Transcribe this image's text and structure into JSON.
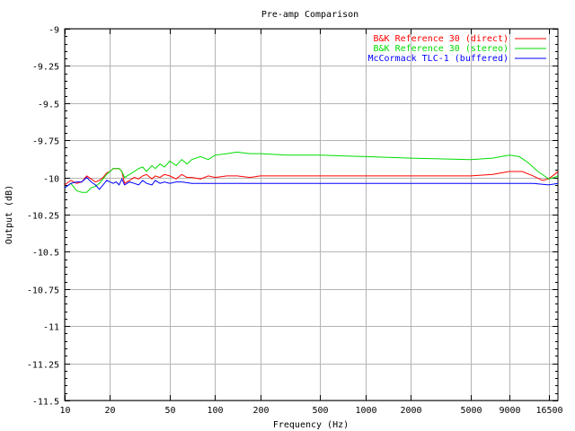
{
  "chart_data": {
    "type": "line",
    "title": "Pre-amp Comparison",
    "xlabel": "Frequency (Hz)",
    "ylabel": "Output (dB)",
    "x_scale": "log",
    "xlim": [
      10,
      19000
    ],
    "ylim": [
      -11.5,
      -9
    ],
    "grid": true,
    "legend_position": "top-right",
    "x_ticks": [
      10,
      20,
      50,
      100,
      200,
      500,
      1000,
      2000,
      5000,
      9000,
      16500
    ],
    "x_tick_labels": [
      "10",
      "20",
      "50",
      "100",
      "200",
      "500",
      "1000",
      "2000",
      "5000",
      "9000",
      "16500"
    ],
    "y_ticks": [
      -9,
      -9.25,
      -9.5,
      -9.75,
      -10,
      -10.25,
      -10.5,
      -10.75,
      -11,
      -11.25,
      -11.5
    ],
    "y_tick_labels": [
      "-9",
      "-9.25",
      "-9.5",
      "-9.75",
      "-10",
      "-10.25",
      "-10.5",
      "-10.75",
      "-11",
      "-11.25",
      "-11.5"
    ],
    "series": [
      {
        "name": "B&K Reference 30 (direct)",
        "color": "#ff0000",
        "points": [
          [
            10,
            -10.05
          ],
          [
            11,
            -10.02
          ],
          [
            12,
            -10.04
          ],
          [
            13,
            -10.03
          ],
          [
            14,
            -9.99
          ],
          [
            15,
            -10.01
          ],
          [
            16,
            -10.03
          ],
          [
            17,
            -10.02
          ],
          [
            18,
            -10.0
          ],
          [
            19,
            -9.97
          ],
          [
            20,
            -9.96
          ],
          [
            21,
            -9.94
          ],
          [
            22,
            -9.94
          ],
          [
            23,
            -9.94
          ],
          [
            24,
            -9.96
          ],
          [
            25,
            -10.04
          ],
          [
            27,
            -10.02
          ],
          [
            29,
            -10.0
          ],
          [
            31,
            -10.01
          ],
          [
            33,
            -9.99
          ],
          [
            35,
            -9.98
          ],
          [
            38,
            -10.01
          ],
          [
            40,
            -9.99
          ],
          [
            43,
            -10.0
          ],
          [
            46,
            -9.98
          ],
          [
            50,
            -9.99
          ],
          [
            55,
            -10.01
          ],
          [
            60,
            -9.98
          ],
          [
            65,
            -10.0
          ],
          [
            70,
            -10.0
          ],
          [
            80,
            -10.01
          ],
          [
            90,
            -9.99
          ],
          [
            100,
            -10.0
          ],
          [
            120,
            -9.99
          ],
          [
            140,
            -9.99
          ],
          [
            170,
            -10.0
          ],
          [
            200,
            -9.99
          ],
          [
            300,
            -9.99
          ],
          [
            500,
            -9.99
          ],
          [
            1000,
            -9.99
          ],
          [
            2000,
            -9.99
          ],
          [
            5000,
            -9.99
          ],
          [
            7000,
            -9.98
          ],
          [
            9000,
            -9.96
          ],
          [
            11000,
            -9.96
          ],
          [
            13000,
            -9.99
          ],
          [
            15000,
            -10.02
          ],
          [
            16500,
            -10.01
          ],
          [
            18000,
            -9.98
          ],
          [
            19000,
            -9.96
          ]
        ]
      },
      {
        "name": "B&K Reference 30 (stereo)",
        "color": "#00dd00",
        "points": [
          [
            10,
            -10.07
          ],
          [
            11,
            -10.04
          ],
          [
            12,
            -10.09
          ],
          [
            13,
            -10.1
          ],
          [
            14,
            -10.1
          ],
          [
            15,
            -10.07
          ],
          [
            16,
            -10.06
          ],
          [
            17,
            -10.04
          ],
          [
            18,
            -10.01
          ],
          [
            19,
            -9.98
          ],
          [
            20,
            -9.96
          ],
          [
            21,
            -9.94
          ],
          [
            22,
            -9.94
          ],
          [
            23,
            -9.94
          ],
          [
            24,
            -9.96
          ],
          [
            25,
            -10.0
          ],
          [
            27,
            -9.98
          ],
          [
            29,
            -9.96
          ],
          [
            31,
            -9.94
          ],
          [
            33,
            -9.93
          ],
          [
            35,
            -9.96
          ],
          [
            38,
            -9.92
          ],
          [
            40,
            -9.94
          ],
          [
            43,
            -9.91
          ],
          [
            46,
            -9.93
          ],
          [
            50,
            -9.89
          ],
          [
            55,
            -9.92
          ],
          [
            60,
            -9.88
          ],
          [
            65,
            -9.91
          ],
          [
            70,
            -9.88
          ],
          [
            80,
            -9.86
          ],
          [
            90,
            -9.88
          ],
          [
            100,
            -9.85
          ],
          [
            120,
            -9.84
          ],
          [
            140,
            -9.83
          ],
          [
            170,
            -9.84
          ],
          [
            200,
            -9.84
          ],
          [
            300,
            -9.85
          ],
          [
            500,
            -9.85
          ],
          [
            1000,
            -9.86
          ],
          [
            2000,
            -9.87
          ],
          [
            5000,
            -9.88
          ],
          [
            7000,
            -9.87
          ],
          [
            9000,
            -9.85
          ],
          [
            10500,
            -9.86
          ],
          [
            12000,
            -9.9
          ],
          [
            14000,
            -9.96
          ],
          [
            16000,
            -10.0
          ],
          [
            16500,
            -10.01
          ],
          [
            18000,
            -10.0
          ],
          [
            19000,
            -9.99
          ]
        ]
      },
      {
        "name": "McCormack TLC-1 (buffered)",
        "color": "#0000ff",
        "points": [
          [
            10,
            -10.07
          ],
          [
            11,
            -10.04
          ],
          [
            12,
            -10.03
          ],
          [
            13,
            -10.03
          ],
          [
            14,
            -10.0
          ],
          [
            15,
            -10.03
          ],
          [
            16,
            -10.05
          ],
          [
            17,
            -10.08
          ],
          [
            18,
            -10.05
          ],
          [
            19,
            -10.02
          ],
          [
            20,
            -10.03
          ],
          [
            21,
            -10.04
          ],
          [
            22,
            -10.03
          ],
          [
            23,
            -10.05
          ],
          [
            24,
            -10.01
          ],
          [
            25,
            -10.05
          ],
          [
            27,
            -10.03
          ],
          [
            29,
            -10.04
          ],
          [
            31,
            -10.05
          ],
          [
            33,
            -10.02
          ],
          [
            35,
            -10.04
          ],
          [
            38,
            -10.05
          ],
          [
            40,
            -10.02
          ],
          [
            43,
            -10.04
          ],
          [
            46,
            -10.03
          ],
          [
            50,
            -10.04
          ],
          [
            55,
            -10.03
          ],
          [
            60,
            -10.03
          ],
          [
            70,
            -10.04
          ],
          [
            100,
            -10.04
          ],
          [
            200,
            -10.04
          ],
          [
            500,
            -10.04
          ],
          [
            1000,
            -10.04
          ],
          [
            2000,
            -10.04
          ],
          [
            5000,
            -10.04
          ],
          [
            9000,
            -10.04
          ],
          [
            13000,
            -10.04
          ],
          [
            16500,
            -10.05
          ],
          [
            19000,
            -10.04
          ]
        ]
      }
    ]
  }
}
